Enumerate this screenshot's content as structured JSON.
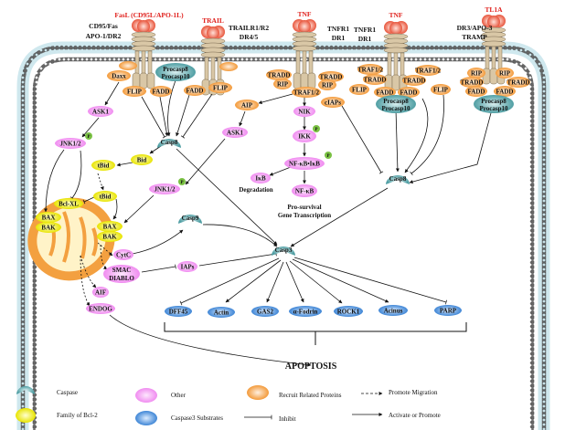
{
  "colors": {
    "caspase": "#4f9ea3",
    "bcl2": "#e8e400",
    "other": "#f08cf0",
    "recruit": "#f39a3a",
    "substrate": "#4a8fd8",
    "ligand": "#e0201c",
    "membrane": "#cfe8ee"
  },
  "receptors": {
    "fasl": "FasL (CD95L/APO-1L)",
    "fas1": "CD95/Fas",
    "fas2": "APO-1/DR2",
    "trail": "TRAIL",
    "trailr1": "TRAILR1/R2",
    "trailr2": "DR4/5",
    "tnf1": "TNF",
    "tnfr1a": "TNFR1",
    "tnfr1b": "DR1",
    "tnf2": "TNF",
    "tnfr2a": "TNFR1",
    "tnfr2b": "DR1",
    "dr3a": "DR3/APO-3",
    "dr3b": "TRAMP",
    "tl1a": "TL1A"
  },
  "nodes": {
    "daxx": "Daxx",
    "flip1": "FLIP",
    "fadd1": "FADD",
    "procasp8_1": "Procasp8",
    "procasp10_1": "Procasp10",
    "fadd2": "FADD",
    "flip2": "FLIP",
    "tradd1": "TRADD",
    "rip1": "RIP",
    "tradd2": "TRADD",
    "rip2": "RIP",
    "traf1": "TRAF1/2",
    "ciaps": "cIAPs",
    "traf2": "TRAF1/2",
    "tradd3": "TRADD",
    "flip3": "FLIP",
    "fadd3": "FADD",
    "fadd4": "FADD",
    "tradd4": "TRADD",
    "traf3": "TRAF1/2",
    "flip4": "FLIP",
    "procasp8_2": "Procasp8",
    "procasp10_2": "Procasp10",
    "rip3": "RIP",
    "tradd5": "TRADD",
    "fadd5": "FADD",
    "rip4": "RIP",
    "tradd6": "TRADD",
    "fadd6": "FADD",
    "procasp8_3": "Procasp8",
    "procasp10_3": "Procasp10",
    "aip": "AIP",
    "ask1a": "ASK1",
    "ask1b": "ASK1",
    "nik": "NIK",
    "ikk": "IKK",
    "nfkb_ikb": "NF-κB•IκB",
    "ikb": "IκB",
    "nfkb": "NF-κB",
    "casp8a": "Casp8",
    "casp8b": "Casp8",
    "jnk1": "JNK1/2",
    "bid": "Bid",
    "tbid1": "tBid",
    "jnk2": "JNK1/2",
    "tbid2": "tBid",
    "bclxl": "Bcl-XL",
    "bax1": "BAX",
    "bak1": "BAK",
    "bax2": "BAX",
    "bak2": "BAK",
    "cytc": "CytC",
    "smac": "SMAC",
    "diablo": "DIABLO",
    "iaps": "IAPs",
    "aif": "AIF",
    "endog": "ENDOG",
    "casp9": "Casp9",
    "casp3": "Casp3",
    "dff45": "DFF45",
    "actin": "Actin",
    "gas2": "GAS2",
    "fodrin": "α-Fodrin",
    "rock1": "ROCK1",
    "acinus": "Acinus",
    "parp": "PARP",
    "p": "P"
  },
  "annotations": {
    "degradation": "Degradation",
    "prosurvival1": "Pro-survival",
    "prosurvival2": "Gene Transcription",
    "apoptosis": "APOPTOSIS"
  },
  "legend": {
    "caspase": "Caspase",
    "bcl2": "Family of Bcl-2",
    "other": "Other",
    "substrates": "Caspase3 Substrates",
    "recruit": "Recruit Related Proteins",
    "inhibit": "Inhibit",
    "migration": "Promote Migration",
    "activate": "Activate or Promote"
  }
}
